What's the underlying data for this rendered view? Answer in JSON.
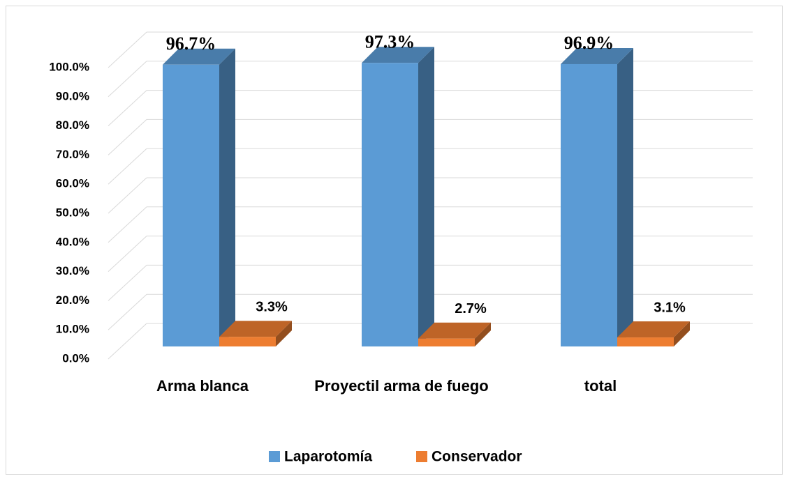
{
  "chart_data": {
    "type": "bar3d",
    "categories": [
      "Arma blanca",
      "Proyectil arma de fuego",
      "total"
    ],
    "series": [
      {
        "name": "Laparotomía",
        "color": "#5b9bd5",
        "values": [
          96.7,
          97.3,
          96.9
        ],
        "value_labels": [
          "96.7%",
          "97.3%",
          "96.9%"
        ]
      },
      {
        "name": "Conservador",
        "color": "#ed7d31",
        "values": [
          3.3,
          2.7,
          3.1
        ],
        "value_labels": [
          "3.3%",
          "2.7%",
          "3.1%"
        ]
      }
    ],
    "ylim": [
      0,
      100
    ],
    "yticks": [
      {
        "value": 0,
        "label": "0.0%"
      },
      {
        "value": 10,
        "label": "10.0%"
      },
      {
        "value": 20,
        "label": "20.0%"
      },
      {
        "value": 30,
        "label": "30.0%"
      },
      {
        "value": 40,
        "label": "40.0%"
      },
      {
        "value": 50,
        "label": "50.0%"
      },
      {
        "value": 60,
        "label": "60.0%"
      },
      {
        "value": 70,
        "label": "70.0%"
      },
      {
        "value": 80,
        "label": "80.0%"
      },
      {
        "value": 90,
        "label": "90.0%"
      },
      {
        "value": 100,
        "label": "100.0%"
      }
    ],
    "grid": true,
    "legend": "bottom"
  }
}
